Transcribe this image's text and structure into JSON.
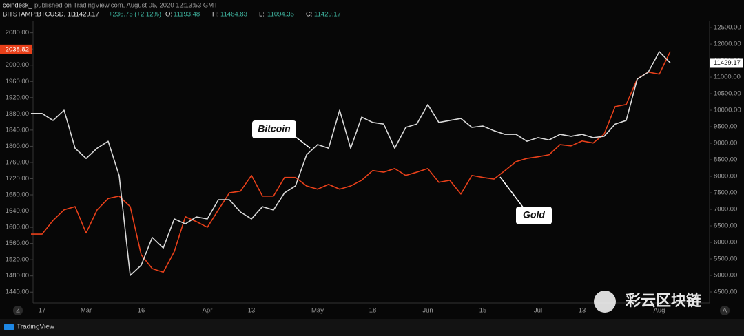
{
  "header": {
    "publisher": "coindesk_",
    "published": "published on TradingView.com, August 05, 2020 12:13:53 GMT",
    "symbol": "BITSTAMP:BTCUSD, 1D",
    "last": "11429.17",
    "change": "+236.75 (+2.12%)",
    "ohlc": [
      {
        "label": "O:",
        "value": "11193.48"
      },
      {
        "label": "H:",
        "value": "11464.83"
      },
      {
        "label": "L:",
        "value": "11094.35"
      },
      {
        "label": "C:",
        "value": "11429.17"
      }
    ]
  },
  "footer": {
    "brand": "TradingView",
    "watermark": "彩云区块链",
    "left_button": "Z",
    "right_button": "A"
  },
  "chart_data": {
    "type": "line",
    "categories": [
      null,
      "17",
      null,
      null,
      null,
      "Mar",
      null,
      null,
      null,
      null,
      "16",
      null,
      null,
      null,
      null,
      null,
      "Apr",
      null,
      null,
      null,
      "13",
      null,
      null,
      null,
      null,
      null,
      "May",
      null,
      null,
      null,
      null,
      "18",
      null,
      null,
      null,
      null,
      "Jun",
      null,
      null,
      null,
      null,
      "15",
      null,
      null,
      null,
      null,
      "Jul",
      null,
      null,
      null,
      "13",
      null,
      null,
      null,
      null,
      null,
      null,
      "Aug",
      null
    ],
    "series": [
      {
        "name": "Bitcoin",
        "color": "#d9d9d9",
        "axis": "y2",
        "last_price": 11429.17,
        "values": [
          9900,
          9900,
          9690,
          10000,
          8850,
          8540,
          8850,
          9060,
          8020,
          5000,
          5310,
          6150,
          5830,
          6710,
          6560,
          6770,
          6710,
          7290,
          7290,
          6920,
          6710,
          7080,
          6980,
          7500,
          7710,
          8650,
          8960,
          8850,
          10000,
          8850,
          9790,
          9630,
          9580,
          8850,
          9480,
          9580,
          10170,
          9630,
          9690,
          9750,
          9480,
          9520,
          9380,
          9270,
          9270,
          9060,
          9170,
          9100,
          9270,
          9210,
          9270,
          9170,
          9210,
          9580,
          9690,
          10940,
          11150,
          11770,
          11429
        ]
      },
      {
        "name": "Gold",
        "color": "#e8401a",
        "axis": "y",
        "last_price": 2038.82,
        "values": [
          1583,
          1583,
          1617,
          1643,
          1651,
          1586,
          1643,
          1671,
          1677,
          1651,
          1532,
          1498,
          1489,
          1540,
          1626,
          1614,
          1600,
          1643,
          1685,
          1689,
          1728,
          1677,
          1677,
          1723,
          1723,
          1702,
          1694,
          1706,
          1694,
          1702,
          1716,
          1740,
          1736,
          1745,
          1728,
          1736,
          1745,
          1711,
          1716,
          1682,
          1728,
          1723,
          1719,
          1740,
          1762,
          1770,
          1774,
          1779,
          1804,
          1801,
          1813,
          1808,
          1830,
          1898,
          1903,
          1966,
          1983,
          1978,
          2034
        ]
      }
    ],
    "ylim": [
      1420,
      2110
    ],
    "yticks": [
      {
        "value": 1440,
        "label": "1440.00"
      },
      {
        "value": 1480,
        "label": "1480.00"
      },
      {
        "value": 1520,
        "label": "1520.00"
      },
      {
        "value": 1560,
        "label": "1560.00"
      },
      {
        "value": 1600,
        "label": "1600.00"
      },
      {
        "value": 1640,
        "label": "1640.00"
      },
      {
        "value": 1680,
        "label": "1680.00"
      },
      {
        "value": 1720,
        "label": "1720.00"
      },
      {
        "value": 1760,
        "label": "1760.00"
      },
      {
        "value": 1800,
        "label": "1800.00"
      },
      {
        "value": 1840,
        "label": "1840.00"
      },
      {
        "value": 1880,
        "label": "1880.00"
      },
      {
        "value": 1920,
        "label": "1920.00"
      },
      {
        "value": 1960,
        "label": "1960.00"
      },
      {
        "value": 2000,
        "label": "2000.00"
      },
      {
        "value": 2040,
        "label": "2040.00"
      },
      {
        "value": 2080,
        "label": "2080.00"
      }
    ],
    "y2lim": [
      4250,
      12710
    ],
    "y2ticks": [
      {
        "value": 4500,
        "label": "4500.00"
      },
      {
        "value": 5000,
        "label": "5000.00"
      },
      {
        "value": 5500,
        "label": "5500.00"
      },
      {
        "value": 6000,
        "label": "6000.00"
      },
      {
        "value": 6500,
        "label": "6500.00"
      },
      {
        "value": 7000,
        "label": "7000.00"
      },
      {
        "value": 7500,
        "label": "7500.00"
      },
      {
        "value": 8000,
        "label": "8000.00"
      },
      {
        "value": 8500,
        "label": "8500.00"
      },
      {
        "value": 9000,
        "label": "9000.00"
      },
      {
        "value": 9500,
        "label": "9500.00"
      },
      {
        "value": 10000,
        "label": "10000.00"
      },
      {
        "value": 10500,
        "label": "10500.00"
      },
      {
        "value": 11000,
        "label": "11000.00"
      },
      {
        "value": 11500,
        "label": "11500.00"
      },
      {
        "value": 12000,
        "label": "12000.00"
      },
      {
        "value": 12500,
        "label": "12500.00"
      }
    ]
  }
}
